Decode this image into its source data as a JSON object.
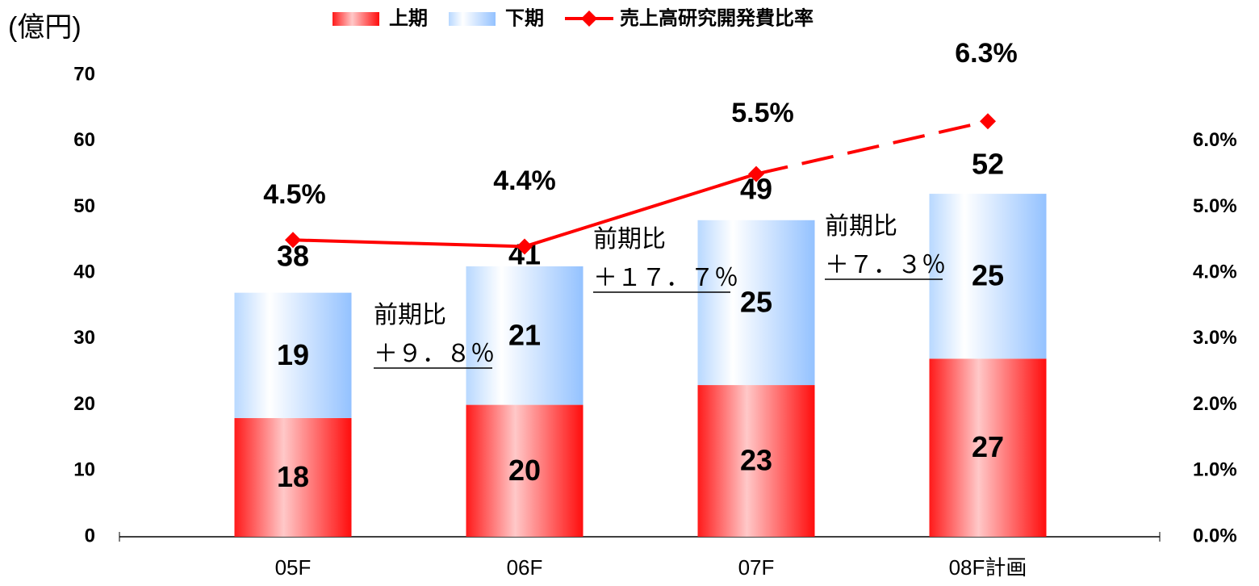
{
  "chart_data": {
    "type": "bar",
    "y_axis_label": "(億円)",
    "categories": [
      "05F",
      "06F",
      "07F",
      "08F計画"
    ],
    "series": [
      {
        "name": "上期",
        "color": "#ff2020",
        "values": [
          18,
          20,
          23,
          27
        ]
      },
      {
        "name": "下期",
        "color": "#9cc8ff",
        "values": [
          19,
          21,
          25,
          25
        ]
      },
      {
        "name": "売上高研究開発費比率",
        "type": "line",
        "axis": "y2",
        "color": "#ff0000",
        "dash_from": 2,
        "values": [
          4.5,
          4.4,
          5.5,
          6.3
        ],
        "value_labels": [
          "4.5%",
          "4.4%",
          "5.5%",
          "6.3%"
        ]
      }
    ],
    "totals": [
      38,
      41,
      49,
      52
    ],
    "annotations": [
      {
        "lines": [
          "前期比",
          "＋９．８％"
        ]
      },
      {
        "lines": [
          "前期比",
          "＋１７．７％"
        ]
      },
      {
        "lines": [
          "前期比",
          "＋７．３％"
        ]
      }
    ],
    "ylim": [
      0,
      70
    ],
    "yticks": [
      0,
      10,
      20,
      30,
      40,
      50,
      60,
      70
    ],
    "y2lim": [
      0,
      7
    ],
    "y2ticks": [
      {
        "value": 0,
        "label": "0.0%"
      },
      {
        "value": 1,
        "label": "1.0%"
      },
      {
        "value": 2,
        "label": "2.0%"
      },
      {
        "value": 3,
        "label": "3.0%"
      },
      {
        "value": 4,
        "label": "4.0%"
      },
      {
        "value": 5,
        "label": "5.0%"
      },
      {
        "value": 6,
        "label": "6.0%"
      }
    ],
    "grid": false,
    "legend": "top"
  }
}
